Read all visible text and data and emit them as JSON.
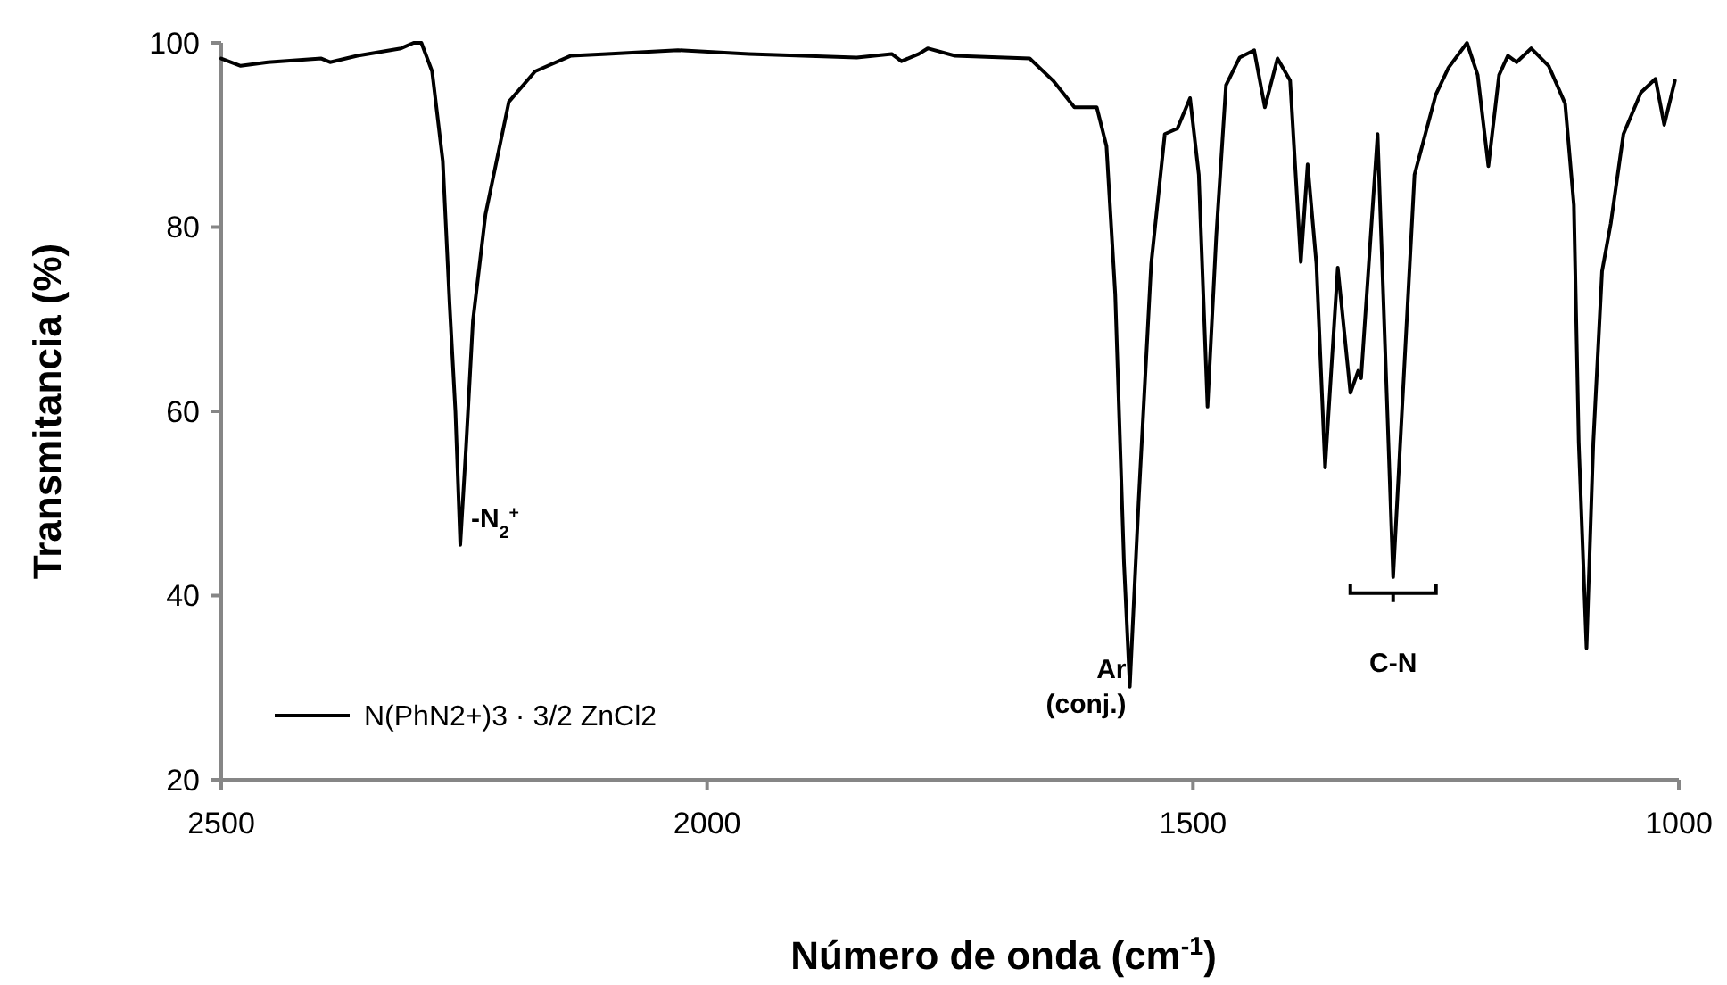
{
  "chart_data": {
    "type": "line",
    "xlabel": "Número de onda (cm$^{-1}$)",
    "ylabel": "Transmitancia (%)",
    "xlim": [
      2500,
      1000
    ],
    "xticks": [
      2500,
      2000,
      1500,
      1000
    ],
    "ylim": [
      20,
      100
    ],
    "yticks": [
      20,
      40,
      60,
      80,
      100
    ],
    "grid": false,
    "legend": "bottom left",
    "marker": "none",
    "line_style": "solid",
    "x": [
      2500,
      2480,
      2452,
      2397,
      2388,
      2360,
      2315,
      2302,
      2294,
      2283,
      2272,
      2265,
      2259,
      2254,
      2248,
      2241,
      2228,
      2204,
      2177,
      2140,
      2103,
      2030,
      1957,
      1846,
      1810,
      1800,
      1782,
      1773,
      1745,
      1668,
      1644,
      1622,
      1599,
      1589,
      1580,
      1571,
      1565,
      1556,
      1543,
      1529,
      1516,
      1503,
      1494,
      1485,
      1476,
      1466,
      1452,
      1437,
      1426,
      1413,
      1400,
      1389,
      1382,
      1373,
      1364,
      1351,
      1338,
      1330,
      1327,
      1310,
      1294,
      1272,
      1250,
      1237,
      1218,
      1207,
      1196,
      1185,
      1176,
      1167,
      1152,
      1134,
      1117,
      1108,
      1103,
      1095,
      1088,
      1079,
      1070,
      1057,
      1039,
      1024,
      1015,
      1004
    ],
    "series": [
      {
        "name": "N(PhN2+)3 · 3/2 ZnCl2",
        "color": "#000000",
        "values": [
          98.3,
          97.5,
          97.9,
          98.3,
          97.9,
          98.6,
          99.4,
          100,
          100,
          96.9,
          87.2,
          71.7,
          60,
          45.5,
          56.2,
          69.8,
          81.4,
          93.6,
          96.9,
          98.6,
          98.8,
          99.2,
          98.8,
          98.4,
          98.8,
          98,
          98.8,
          99.4,
          98.6,
          98.3,
          95.9,
          93,
          93,
          88.8,
          72.7,
          43.6,
          30.1,
          50,
          76,
          90.1,
          90.7,
          94,
          85.7,
          60.5,
          79.1,
          95.4,
          98.4,
          99.2,
          93,
          98.3,
          95.9,
          76.2,
          86.8,
          76,
          53.9,
          75.6,
          62,
          64.4,
          63.6,
          90.1,
          42,
          85.7,
          94.4,
          97.3,
          100,
          96.5,
          86.6,
          96.5,
          98.6,
          97.9,
          99.4,
          97.5,
          93.4,
          82.4,
          56.6,
          34.3,
          56.6,
          75.2,
          80.4,
          90.1,
          94.6,
          96.1,
          91.1,
          95.9
        ]
      }
    ],
    "annotations": [
      {
        "text": "-N$_{2}$$^{+}$",
        "x": 2254,
        "y": 45.5
      },
      {
        "text": "Ar\n(conj.)",
        "x": 1565,
        "y": 30.1
      },
      {
        "text": "C-N",
        "x": 1294,
        "y": 42
      }
    ]
  }
}
